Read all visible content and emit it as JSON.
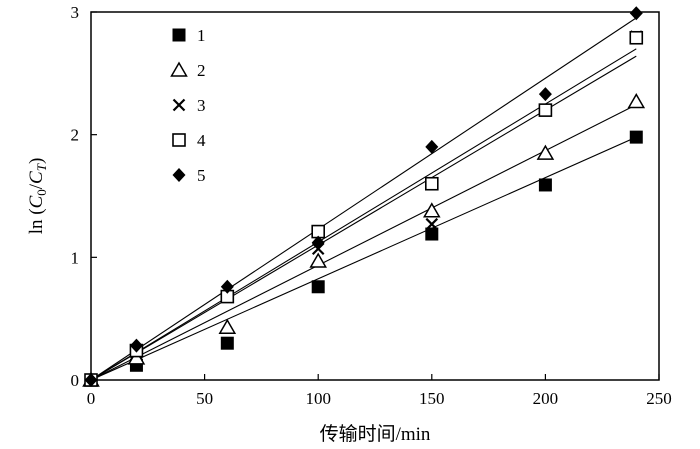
{
  "chart_data": {
    "type": "scatter",
    "xlabel": "传输时间/min",
    "ylabel": {
      "prefix": "ln (",
      "c0": "C",
      "c0_sub": "0",
      "slash": "/",
      "ct": "C",
      "ct_sub": "T",
      "suffix": ")"
    },
    "xlim": [
      0,
      250
    ],
    "ylim": [
      0,
      3
    ],
    "x_ticks": [
      "0",
      "50",
      "100",
      "150",
      "200",
      "250"
    ],
    "y_ticks": [
      "0",
      "1",
      "2",
      "3"
    ],
    "x": [
      0,
      20,
      60,
      100,
      150,
      200,
      240
    ],
    "series": [
      {
        "name": "1",
        "marker": "filled-square",
        "values": [
          0,
          0.12,
          0.3,
          0.76,
          1.19,
          1.59,
          1.98
        ],
        "fit_slope": 0.00825
      },
      {
        "name": "2",
        "marker": "open-triangle",
        "values": [
          0,
          0.18,
          0.43,
          0.97,
          1.38,
          1.85,
          2.27
        ],
        "fit_slope": 0.00935
      },
      {
        "name": "3",
        "marker": "cross",
        "values": [
          0,
          0.22,
          0.68,
          1.07,
          1.27,
          2.2,
          2.8
        ],
        "fit_slope": 0.011
      },
      {
        "name": "4",
        "marker": "open-square",
        "values": [
          0,
          0.24,
          0.68,
          1.21,
          1.6,
          2.2,
          2.79
        ],
        "fit_slope": 0.01125
      },
      {
        "name": "5",
        "marker": "filled-diamond",
        "values": [
          0,
          0.28,
          0.76,
          1.12,
          1.9,
          2.33,
          2.99
        ],
        "fit_slope": 0.0123
      }
    ],
    "legend_position": "top-left",
    "grid": false
  }
}
